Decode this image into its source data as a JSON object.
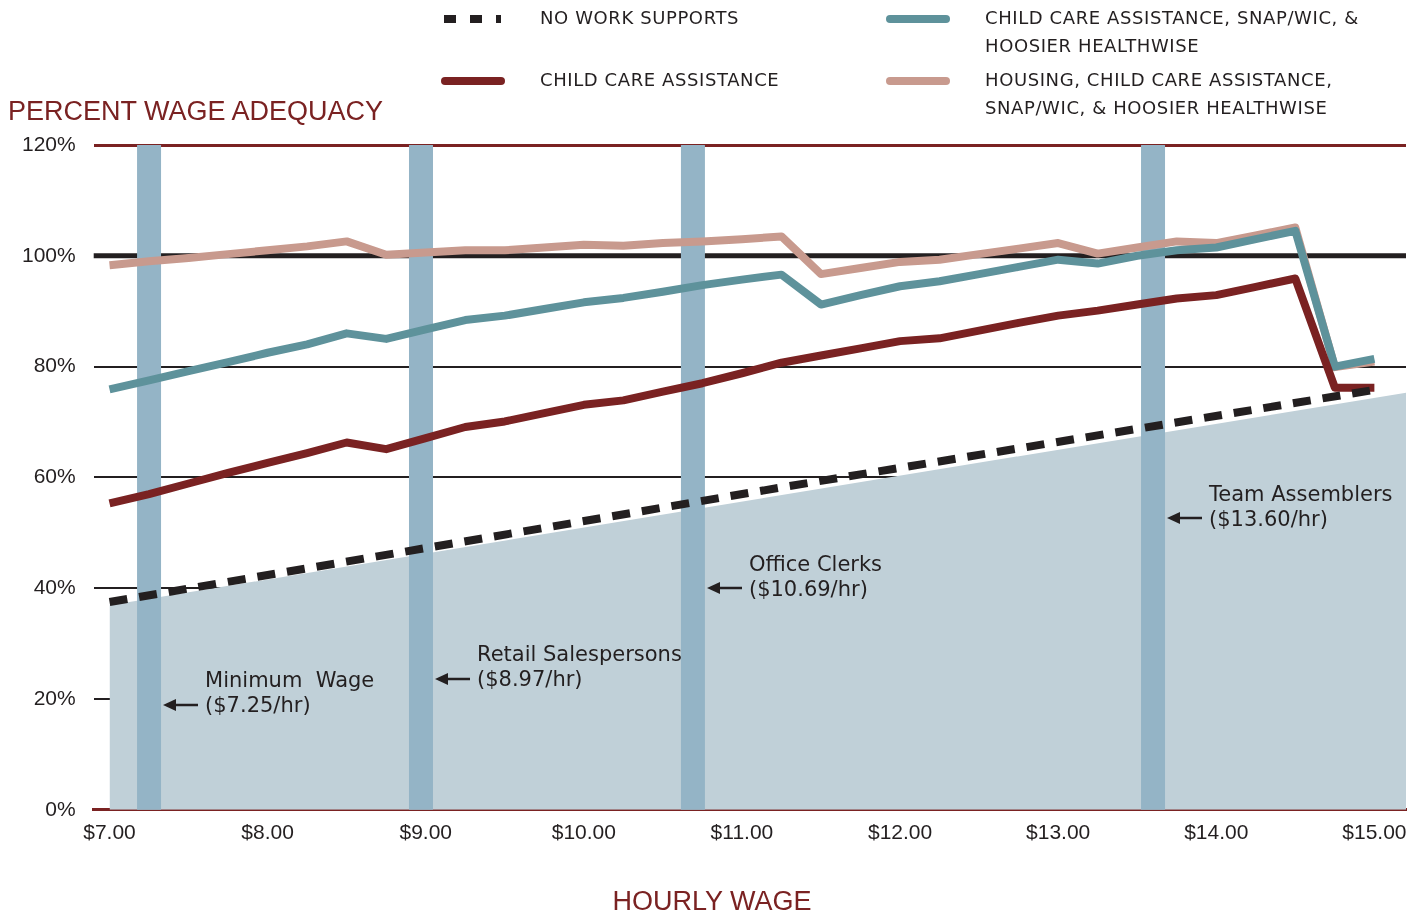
{
  "chart_data": {
    "type": "line",
    "ylabel": "PERCENT WAGE ADEQUACY",
    "xlabel": "HOURLY WAGE",
    "x": [
      7.0,
      7.25,
      7.5,
      7.75,
      8.0,
      8.25,
      8.5,
      8.75,
      9.0,
      9.25,
      9.5,
      9.75,
      10.0,
      10.25,
      10.5,
      10.75,
      11.0,
      11.25,
      11.5,
      11.75,
      12.0,
      12.25,
      12.5,
      12.75,
      13.0,
      13.25,
      13.5,
      13.75,
      14.0,
      14.25,
      14.5,
      14.75,
      15.0
    ],
    "series": [
      {
        "type": "area",
        "color": "#c0d0d8",
        "x": [
          7.0,
          15.2
        ],
        "values": [
          36.9,
          75.3
        ]
      },
      {
        "name": "NO WORK SUPPORTS",
        "color": "#231f20",
        "line_style": "dashed",
        "x": [
          7.0,
          11.25,
          15.0
        ],
        "values": [
          37.5,
          58.2,
          75.8
        ]
      },
      {
        "name": "CHILD CARE ASSISTANCE",
        "color": "#7a2222",
        "values": [
          55.3,
          57.0,
          58.9,
          60.8,
          62.6,
          64.4,
          66.3,
          65.1,
          67.1,
          69.1,
          70.1,
          71.6,
          73.1,
          73.9,
          75.5,
          77.0,
          78.8,
          80.7,
          82.0,
          83.3,
          84.6,
          85.1,
          86.5,
          87.9,
          89.2,
          90.1,
          91.2,
          92.3,
          92.9,
          94.4,
          95.9,
          76.2,
          76.2
        ]
      },
      {
        "name": "CHILD CARE ASSISTANCE, SNAP/WIC, & HOOSIER HEALTHWISE",
        "color": "#5e929b",
        "values": [
          75.9,
          77.5,
          79.2,
          80.8,
          82.5,
          84.0,
          86.0,
          85.0,
          86.7,
          88.4,
          89.2,
          90.4,
          91.6,
          92.4,
          93.5,
          94.7,
          95.7,
          96.6,
          91.2,
          92.9,
          94.5,
          95.4,
          96.7,
          98.0,
          99.3,
          98.6,
          100.0,
          101.0,
          101.5,
          103.0,
          104.5,
          80.0,
          81.4
        ]
      },
      {
        "name": "HOUSING, CHILD CARE ASSISTANCE, SNAP/WIC, & HOOSIER HEALTHWISE",
        "color": "#c89a8e",
        "values": [
          98.3,
          99.0,
          99.6,
          100.3,
          101.0,
          101.7,
          102.6,
          100.2,
          100.6,
          101.0,
          101.0,
          101.5,
          102.0,
          101.8,
          102.3,
          102.6,
          103.0,
          103.5,
          96.7,
          97.8,
          98.9,
          99.3,
          100.3,
          101.3,
          102.3,
          100.4,
          101.5,
          102.6,
          102.3,
          103.7,
          105.1,
          79.9,
          80.9
        ]
      }
    ],
    "xlim": [
      6.9,
      15.2
    ],
    "xticks": [
      {
        "value": 7,
        "label": "$7.00"
      },
      {
        "value": 8,
        "label": "$8.00"
      },
      {
        "value": 9,
        "label": "$9.00"
      },
      {
        "value": 10,
        "label": "$10.00"
      },
      {
        "value": 11,
        "label": "$11.00"
      },
      {
        "value": 12,
        "label": "$12.00"
      },
      {
        "value": 13,
        "label": "$13.00"
      },
      {
        "value": 14,
        "label": "$14.00"
      },
      {
        "value": 15,
        "label": "$15.00"
      }
    ],
    "ylim": [
      0,
      120
    ],
    "yticks": [
      {
        "value": 0,
        "label": "0%"
      },
      {
        "value": 20,
        "label": "20%"
      },
      {
        "value": 40,
        "label": "40%"
      },
      {
        "value": 60,
        "label": "60%"
      },
      {
        "value": 80,
        "label": "80%"
      },
      {
        "value": 100,
        "label": "100%"
      },
      {
        "value": 120,
        "label": "120%"
      }
    ],
    "grid": "y",
    "legend": "top",
    "marker": "none",
    "ref_lines": [
      {
        "axis": "y",
        "value": 100,
        "color": "#231f20"
      },
      {
        "axis": "x",
        "value": 7.25,
        "color": "#94b4c6"
      },
      {
        "axis": "x",
        "value": 8.97,
        "color": "#94b4c6"
      },
      {
        "axis": "x",
        "value": 10.69,
        "color": "#94b4c6"
      },
      {
        "axis": "x",
        "value": 13.6,
        "color": "#94b4c6"
      }
    ],
    "annotations": [
      {
        "text": "Minimum  Wage\n($7.25/hr)",
        "x": 7.25,
        "y": 19.0
      },
      {
        "text": "Retail Salespersons\n($8.97/hr)",
        "x": 8.97,
        "y": 23.7
      },
      {
        "text": "Office Clerks\n($10.69/hr)",
        "x": 10.69,
        "y": 40.0
      },
      {
        "text": "Team Assemblers\n($13.60/hr)",
        "x": 13.6,
        "y": 52.6
      }
    ]
  }
}
